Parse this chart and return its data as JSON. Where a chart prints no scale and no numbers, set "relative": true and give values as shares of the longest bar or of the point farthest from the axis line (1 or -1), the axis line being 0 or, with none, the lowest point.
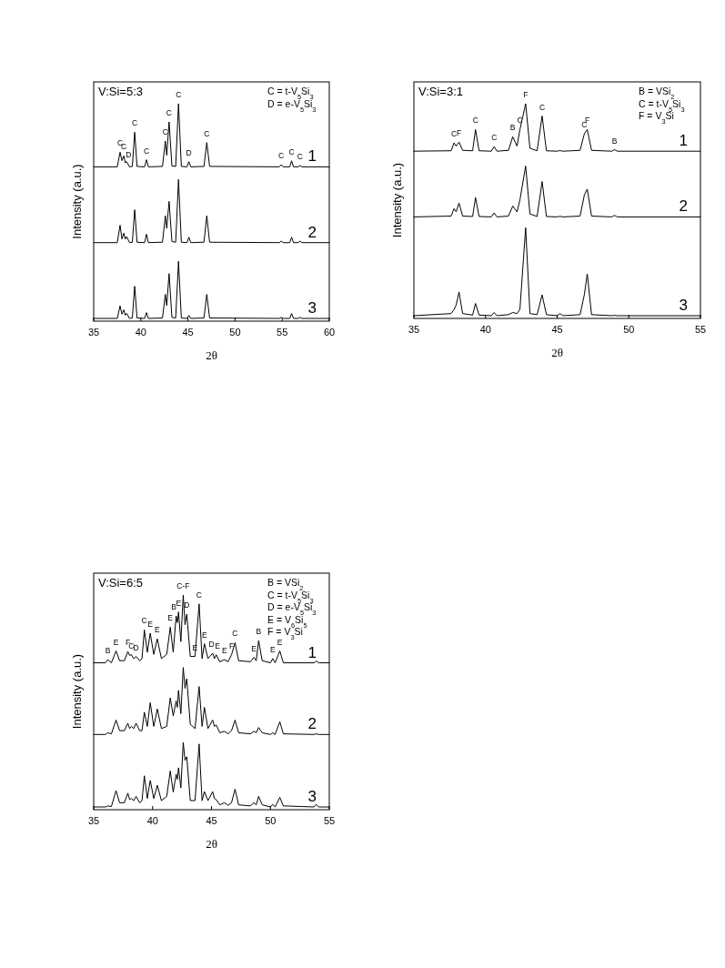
{
  "chart_data": [
    {
      "type": "line",
      "relative": true,
      "title": "V:Si=5:3",
      "xlabel": "2θ",
      "ylabel": "Intensity (a.u.)",
      "xlim": [
        35,
        60
      ],
      "xticks": [
        35,
        40,
        45,
        50,
        55,
        60
      ],
      "tick_labels": "x",
      "x": [
        35,
        37.5,
        37.8,
        38.0,
        38.2,
        38.35,
        38.5,
        38.8,
        39.1,
        39.35,
        39.6,
        40.4,
        40.6,
        40.8,
        42.3,
        42.6,
        42.75,
        43.0,
        43.3,
        43.7,
        44.0,
        44.3,
        44.9,
        45.1,
        45.3,
        46.7,
        47.0,
        47.3,
        54.7,
        54.9,
        55.1,
        55.8,
        56.0,
        56.2,
        56.7,
        56.9,
        57.1,
        60
      ],
      "series": [
        {
          "name": "1",
          "color": "#000000",
          "values": [
            0.706,
            0.706,
            0.774,
            0.735,
            0.757,
            0.725,
            0.73,
            0.706,
            0.708,
            0.867,
            0.708,
            0.706,
            0.739,
            0.706,
            0.708,
            0.826,
            0.76,
            0.915,
            0.71,
            0.708,
            1.0,
            0.708,
            0.706,
            0.73,
            0.706,
            0.708,
            0.819,
            0.708,
            0.706,
            0.716,
            0.706,
            0.706,
            0.734,
            0.706,
            0.706,
            0.712,
            0.706,
            0.706
          ]
        },
        {
          "name": "2",
          "color": "#000000",
          "values": [
            0.353,
            0.353,
            0.434,
            0.37,
            0.397,
            0.37,
            0.381,
            0.353,
            0.355,
            0.506,
            0.355,
            0.353,
            0.392,
            0.353,
            0.355,
            0.478,
            0.42,
            0.545,
            0.358,
            0.355,
            0.647,
            0.355,
            0.353,
            0.378,
            0.353,
            0.355,
            0.478,
            0.355,
            0.353,
            0.36,
            0.353,
            0.353,
            0.378,
            0.353,
            0.353,
            0.36,
            0.353,
            0.353
          ]
        },
        {
          "name": "3",
          "color": "#000000",
          "values": [
            0,
            0,
            0.058,
            0.02,
            0.04,
            0.015,
            0.023,
            0,
            0.002,
            0.15,
            0.002,
            0,
            0.027,
            0,
            0.002,
            0.112,
            0.06,
            0.209,
            0.005,
            0.002,
            0.266,
            0.002,
            0,
            0.014,
            0,
            0.002,
            0.112,
            0.002,
            0,
            0.005,
            0,
            0,
            0.023,
            0,
            0,
            0.005,
            0,
            0
          ]
        }
      ],
      "annotations": [
        "C = t-V$_{5}$Si$_{3}$",
        "D = e-V$_{5}$Si$_{3}$",
        {
          "text": "C",
          "x": 37.8,
          "y": 0.774
        },
        {
          "text": "C",
          "x": 38.2,
          "y": 0.757
        },
        {
          "text": "D",
          "x": 38.7,
          "y": 0.72
        },
        {
          "text": "C",
          "x": 39.35,
          "y": 0.867
        },
        {
          "text": "C",
          "x": 40.6,
          "y": 0.739
        },
        {
          "text": "C",
          "x": 42.6,
          "y": 0.826
        },
        {
          "text": "C",
          "x": 43.0,
          "y": 0.915
        },
        {
          "text": "C",
          "x": 44.0,
          "y": 1.0
        },
        {
          "text": "D",
          "x": 45.1,
          "y": 0.73
        },
        {
          "text": "C",
          "x": 47.0,
          "y": 0.819
        },
        {
          "text": "C",
          "x": 54.9,
          "y": 0.716
        },
        {
          "text": "C",
          "x": 56.0,
          "y": 0.734
        },
        {
          "text": "C",
          "x": 56.9,
          "y": 0.712
        }
      ]
    },
    {
      "type": "line",
      "relative": true,
      "title": "V:Si=3:1",
      "xlabel": "2θ",
      "ylabel": "Intensity (a.u.)",
      "xlim": [
        35,
        55
      ],
      "xticks": [
        35,
        40,
        45,
        50,
        55
      ],
      "tick_labels": "x",
      "x": [
        35,
        37.6,
        37.8,
        37.95,
        38.15,
        38.4,
        39.1,
        39.3,
        39.55,
        40.4,
        40.6,
        40.8,
        41.6,
        41.9,
        42.2,
        42.4,
        42.8,
        43.1,
        43.6,
        43.95,
        44.25,
        45.0,
        45.2,
        45.4,
        46.6,
        46.9,
        47.1,
        47.4,
        48.8,
        49.0,
        49.2,
        55
      ],
      "series": [
        {
          "name": "1",
          "color": "#000000",
          "values": [
            0.776,
            0.778,
            0.815,
            0.8,
            0.819,
            0.78,
            0.778,
            0.878,
            0.778,
            0.776,
            0.798,
            0.776,
            0.78,
            0.844,
            0.8,
            0.878,
            1.0,
            0.79,
            0.778,
            0.942,
            0.778,
            0.776,
            0.779,
            0.776,
            0.78,
            0.859,
            0.878,
            0.78,
            0.776,
            0.783,
            0.776,
            0.776
          ]
        },
        {
          "name": "2",
          "color": "#000000",
          "values": [
            0.466,
            0.47,
            0.505,
            0.49,
            0.531,
            0.47,
            0.468,
            0.557,
            0.468,
            0.466,
            0.485,
            0.466,
            0.47,
            0.517,
            0.49,
            0.546,
            0.706,
            0.48,
            0.468,
            0.633,
            0.468,
            0.466,
            0.469,
            0.466,
            0.47,
            0.57,
            0.597,
            0.47,
            0.466,
            0.473,
            0.466,
            0.466
          ]
        },
        {
          "name": "3",
          "color": "#000000",
          "values": [
            0,
            0.01,
            0.029,
            0.05,
            0.112,
            0.01,
            0.003,
            0.058,
            0.003,
            0,
            0.015,
            0,
            0.005,
            0.015,
            0.01,
            0.03,
            0.415,
            0.01,
            0.005,
            0.098,
            0.005,
            0,
            0.01,
            0,
            0.005,
            0.1,
            0.197,
            0.005,
            0,
            0.002,
            0,
            0
          ]
        }
      ],
      "annotations": [
        "B = VSi$_{2}$",
        "C = t-V$_{5}$Si$_{3}$",
        "F = V$_{3}$Si",
        {
          "text": "C",
          "x": 37.8,
          "y": 0.815
        },
        {
          "text": "F",
          "x": 38.15,
          "y": 0.819
        },
        {
          "text": "C",
          "x": 39.3,
          "y": 0.878
        },
        {
          "text": "C",
          "x": 40.6,
          "y": 0.798
        },
        {
          "text": "B",
          "x": 41.9,
          "y": 0.844
        },
        {
          "text": "C",
          "x": 42.4,
          "y": 0.878
        },
        {
          "text": "F",
          "x": 42.8,
          "y": 1.0
        },
        {
          "text": "C",
          "x": 43.95,
          "y": 0.942
        },
        {
          "text": "C",
          "x": 46.9,
          "y": 0.859
        },
        {
          "text": "F",
          "x": 47.1,
          "y": 0.878
        },
        {
          "text": "B",
          "x": 49.0,
          "y": 0.783
        }
      ]
    },
    {
      "type": "line",
      "relative": true,
      "title": "V:Si=6:5",
      "xlabel": "2θ",
      "ylabel": "Intensity (a.u.)",
      "xlim": [
        35,
        55
      ],
      "xticks": [
        35,
        40,
        45,
        50,
        55
      ],
      "tick_labels": "x",
      "x": [
        35,
        36.0,
        36.2,
        36.5,
        36.9,
        37.2,
        37.6,
        37.9,
        38.05,
        38.2,
        38.4,
        38.6,
        38.9,
        39.1,
        39.3,
        39.55,
        39.8,
        40.1,
        40.4,
        40.75,
        41.2,
        41.5,
        41.75,
        42.0,
        42.1,
        42.2,
        42.4,
        42.6,
        42.75,
        42.9,
        43.2,
        43.6,
        43.95,
        44.2,
        44.4,
        44.7,
        45.1,
        45.25,
        45.4,
        45.7,
        46.1,
        46.4,
        46.7,
        47.0,
        47.3,
        48.3,
        48.6,
        48.8,
        49.0,
        49.3,
        50.0,
        50.2,
        50.4,
        50.8,
        51.1,
        53.7,
        53.9,
        54.1,
        55
      ],
      "series": [
        {
          "name": "1",
          "color": "#000000",
          "values": [
            0.68,
            0.68,
            0.695,
            0.68,
            0.736,
            0.69,
            0.69,
            0.733,
            0.715,
            0.718,
            0.7,
            0.71,
            0.69,
            0.7,
            0.835,
            0.73,
            0.82,
            0.72,
            0.793,
            0.7,
            0.72,
            0.848,
            0.73,
            0.901,
            0.87,
            0.92,
            0.78,
            1.0,
            0.86,
            0.91,
            0.71,
            0.71,
            0.958,
            0.7,
            0.77,
            0.7,
            0.725,
            0.7,
            0.718,
            0.685,
            0.695,
            0.685,
            0.718,
            0.775,
            0.69,
            0.685,
            0.706,
            0.69,
            0.785,
            0.69,
            0.68,
            0.7,
            0.68,
            0.736,
            0.68,
            0.68,
            0.688,
            0.68,
            0.68
          ]
        },
        {
          "name": "2",
          "color": "#000000",
          "values": [
            0.342,
            0.342,
            0.35,
            0.345,
            0.41,
            0.36,
            0.36,
            0.395,
            0.37,
            0.38,
            0.37,
            0.395,
            0.36,
            0.36,
            0.447,
            0.38,
            0.492,
            0.38,
            0.462,
            0.37,
            0.38,
            0.515,
            0.43,
            0.5,
            0.47,
            0.55,
            0.44,
            0.658,
            0.56,
            0.605,
            0.39,
            0.37,
            0.568,
            0.38,
            0.47,
            0.37,
            0.41,
            0.38,
            0.387,
            0.35,
            0.357,
            0.345,
            0.36,
            0.41,
            0.35,
            0.345,
            0.357,
            0.35,
            0.375,
            0.35,
            0.342,
            0.35,
            0.342,
            0.402,
            0.345,
            0.342,
            0.345,
            0.342,
            0.342
          ]
        },
        {
          "name": "3",
          "color": "#000000",
          "values": [
            0,
            0,
            0.005,
            0.002,
            0.077,
            0.02,
            0.02,
            0.065,
            0.035,
            0.04,
            0.03,
            0.05,
            0.02,
            0.03,
            0.147,
            0.04,
            0.125,
            0.04,
            0.102,
            0.03,
            0.05,
            0.17,
            0.07,
            0.155,
            0.13,
            0.185,
            0.09,
            0.305,
            0.22,
            0.237,
            0.03,
            0.03,
            0.297,
            0.03,
            0.072,
            0.03,
            0.072,
            0.04,
            0.035,
            0.01,
            0.02,
            0.008,
            0.02,
            0.084,
            0.01,
            0.005,
            0.02,
            0.01,
            0.05,
            0.01,
            0,
            0.012,
            0,
            0.045,
            0.005,
            0,
            0.012,
            0,
            0
          ]
        }
      ],
      "annotations": [
        "B = VSi$_{2}$",
        "C = t-V$_{5}$Si$_{3}$",
        "D = e-V$_{5}$Si$_{3}$",
        "E = V$_{6}$Si$_{5}$",
        "F = V$_{3}$Si",
        {
          "text": "B",
          "x": 36.2,
          "y": 0.695
        },
        {
          "text": "E",
          "x": 36.9,
          "y": 0.736
        },
        {
          "text": "F",
          "x": 37.9,
          "y": 0.733
        },
        {
          "text": "C",
          "x": 38.2,
          "y": 0.718
        },
        {
          "text": "D",
          "x": 38.6,
          "y": 0.71
        },
        {
          "text": "C",
          "x": 39.3,
          "y": 0.835
        },
        {
          "text": "E",
          "x": 39.8,
          "y": 0.82
        },
        {
          "text": "E",
          "x": 40.4,
          "y": 0.793
        },
        {
          "text": "E",
          "x": 41.5,
          "y": 0.848
        },
        {
          "text": "B",
          "x": 41.8,
          "y": 0.901
        },
        {
          "text": "E",
          "x": 42.2,
          "y": 0.92
        },
        {
          "text": "C-F",
          "x": 42.6,
          "y": 1.0
        },
        {
          "text": "D",
          "x": 42.9,
          "y": 0.91
        },
        {
          "text": "E",
          "x": 43.6,
          "y": 0.71
        },
        {
          "text": "C",
          "x": 43.95,
          "y": 0.958
        },
        {
          "text": "E",
          "x": 44.4,
          "y": 0.77
        },
        {
          "text": "D",
          "x": 45.0,
          "y": 0.725
        },
        {
          "text": "E",
          "x": 45.5,
          "y": 0.718
        },
        {
          "text": "E",
          "x": 46.1,
          "y": 0.695
        },
        {
          "text": "F",
          "x": 46.7,
          "y": 0.718
        },
        {
          "text": "C",
          "x": 47.0,
          "y": 0.775
        },
        {
          "text": "E",
          "x": 48.6,
          "y": 0.706
        },
        {
          "text": "B",
          "x": 49.0,
          "y": 0.785
        },
        {
          "text": "E",
          "x": 50.2,
          "y": 0.7
        },
        {
          "text": "E",
          "x": 50.8,
          "y": 0.736
        }
      ]
    }
  ]
}
